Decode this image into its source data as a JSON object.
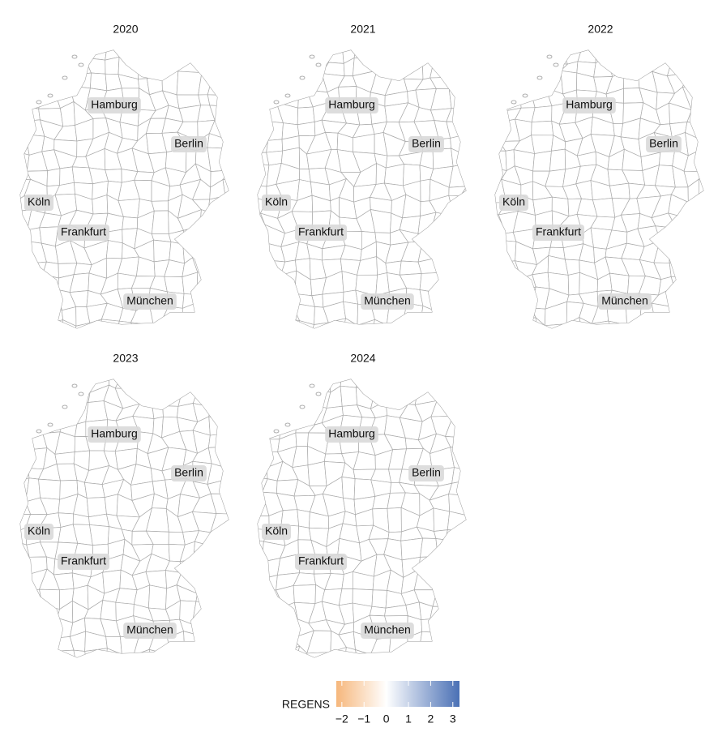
{
  "panels": [
    "2020",
    "2021",
    "2022",
    "2023",
    "2024"
  ],
  "cities": [
    "Hamburg",
    "Berlin",
    "Köln",
    "Frankfurt",
    "München"
  ],
  "legend": {
    "title": "REGENS",
    "lim": [
      -2.25,
      3.3
    ],
    "midpoint": 0,
    "colors": [
      "#f6b77c",
      "#ffffff",
      "#4a70b5"
    ],
    "ticks": [
      {
        "value": -2,
        "label": "−2"
      },
      {
        "value": -1,
        "label": "−1"
      },
      0,
      1,
      2,
      3
    ]
  }
}
